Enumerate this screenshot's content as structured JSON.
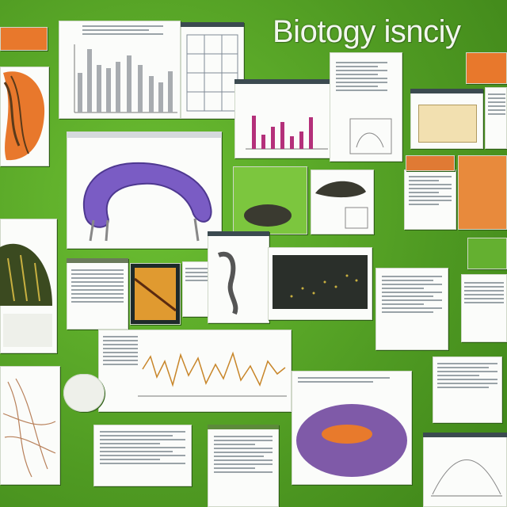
{
  "title": "Biotogy isnciy",
  "colors": {
    "background": "#5aa628",
    "bar": "#a8acb0",
    "magenta_bar": "#b4307a",
    "line": "#c8862a",
    "protein": "#7a5cc4",
    "tissue_orange": "#e87a2c",
    "cell_purple": "#7f5aa8"
  }
}
